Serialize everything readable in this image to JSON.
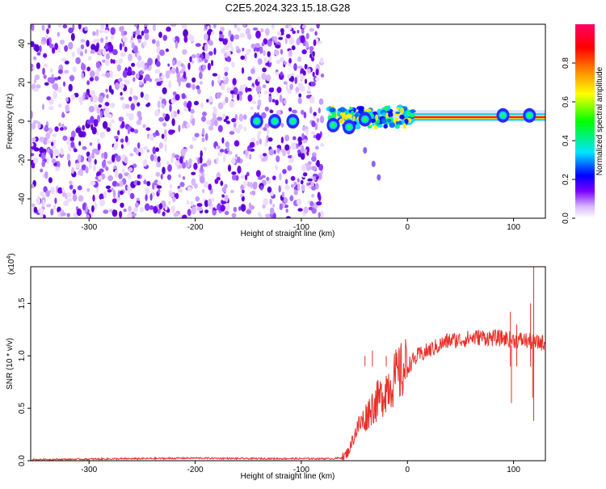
{
  "page": {
    "title": "C2E5.2024.323.15.18.G28"
  },
  "chart_data": [
    {
      "type": "heatmap",
      "xlabel": "Height of straight line (km)",
      "ylabel": "Frequency (Hz)",
      "xlim": [
        -355,
        130
      ],
      "ylim": [
        -50,
        50
      ],
      "x_ticks": [
        -300,
        -200,
        -100,
        0,
        100
      ],
      "x_tick_labels": [
        "-300",
        "-200",
        "-100",
        "0",
        "100"
      ],
      "y_ticks": [
        -40,
        -20,
        0,
        20,
        40
      ],
      "y_tick_labels": [
        "-40",
        "-20",
        "0",
        "20",
        "40"
      ],
      "noise_region_x": [
        -355,
        -80
      ],
      "signal": {
        "frequency_hz": 2,
        "stable_from_x": -5,
        "stable_to_x": 130,
        "turbulent_from_x": -75,
        "turbulent_to_x": -5
      },
      "clusters": [
        {
          "x": -142,
          "y": 0
        },
        {
          "x": -125,
          "y": 0
        },
        {
          "x": -108,
          "y": 0
        },
        {
          "x": -70,
          "y": -2
        },
        {
          "x": -55,
          "y": -3
        },
        {
          "x": -40,
          "y": 1
        },
        {
          "x": 90,
          "y": 3
        },
        {
          "x": 115,
          "y": 3
        }
      ],
      "tail_points": [
        {
          "x": -40,
          "y": -15
        },
        {
          "x": -32,
          "y": -22
        },
        {
          "x": -27,
          "y": -29
        }
      ],
      "colorbar": {
        "label": "Normalized spectral amplitude",
        "range": [
          0,
          1
        ],
        "ticks": [
          0,
          0.2,
          0.4,
          0.6,
          0.8
        ],
        "tick_labels": [
          "0.0",
          "0.2",
          "0.4",
          "0.6",
          "0.8"
        ],
        "colors": [
          "#ffffff",
          "#d9b8ff",
          "#7b00ff",
          "#0000ff",
          "#00e5ff",
          "#00ff00",
          "#ffff00",
          "#ff8800",
          "#ff0000",
          "#ff0066"
        ]
      }
    },
    {
      "type": "line",
      "xlabel": "Height of straight line (km)",
      "ylabel": "SNR (10 * v/v)",
      "multiplier_label_base": "(x10",
      "multiplier_label_exp": "4",
      "multiplier_label_close": ")",
      "xlim": [
        -355,
        130
      ],
      "ylim": [
        0,
        1.85
      ],
      "x_ticks": [
        -300,
        -200,
        -100,
        0,
        100
      ],
      "x_tick_labels": [
        "-300",
        "-200",
        "-100",
        "0",
        "100"
      ],
      "y_ticks": [
        0,
        0.5,
        1.0,
        1.5
      ],
      "y_tick_labels": [
        "0.0",
        "0.5",
        "1.0",
        "1.5"
      ],
      "color": "#e8302a",
      "series": [
        {
          "x": [
            -355,
            -300,
            -250,
            -200,
            -150,
            -100,
            -80,
            -70,
            -60,
            -55,
            -50,
            -45,
            -40,
            -35,
            -30,
            -25,
            -20,
            -15,
            -10,
            -5,
            0,
            10,
            20,
            30,
            40,
            50,
            60,
            70,
            80,
            90,
            100,
            105,
            110,
            115,
            118,
            120,
            125,
            130
          ],
          "y": [
            0.01,
            0.015,
            0.02,
            0.025,
            0.02,
            0.02,
            0.02,
            0.02,
            0.03,
            0.1,
            0.25,
            0.35,
            0.4,
            0.5,
            0.55,
            0.6,
            0.7,
            0.75,
            0.8,
            0.85,
            0.9,
            1.0,
            1.05,
            1.1,
            1.15,
            1.15,
            1.17,
            1.18,
            1.17,
            1.17,
            1.15,
            1.15,
            1.15,
            1.14,
            1.13,
            1.12,
            1.13,
            1.12
          ]
        }
      ],
      "spikes": [
        {
          "x": -44,
          "y": 0.9
        },
        {
          "x": -40,
          "y": 1.0
        },
        {
          "x": -33,
          "y": 1.05
        },
        {
          "x": -20,
          "y": 1.0
        },
        {
          "x": -8,
          "y": 1.08
        },
        {
          "x": 97,
          "y": 1.42
        },
        {
          "x": 103,
          "y": 1.3
        },
        {
          "x": 116,
          "y": 1.5
        },
        {
          "x": 119,
          "y": 1.85
        }
      ],
      "dips": [
        {
          "x": 98,
          "y": 0.55
        },
        {
          "x": 118,
          "y": 0.6
        },
        {
          "x": 119,
          "y": 0.38
        }
      ]
    }
  ]
}
